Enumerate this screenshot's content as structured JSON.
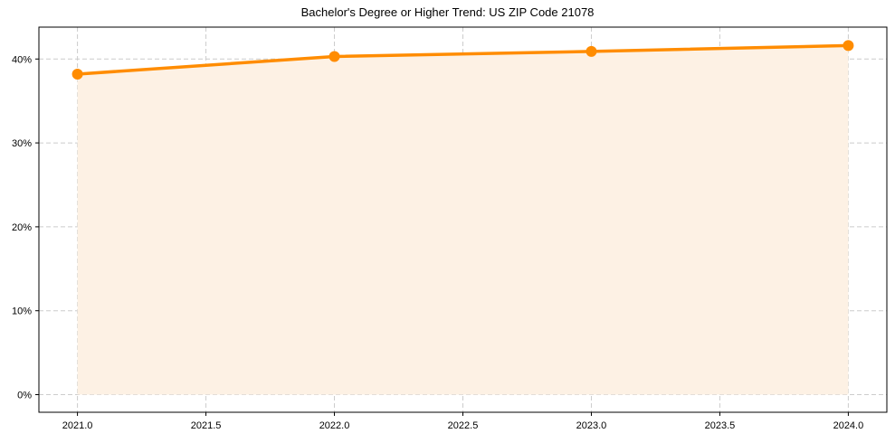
{
  "chart_data": {
    "type": "line",
    "title": "Bachelor's Degree or Higher Trend: US ZIP Code 21078",
    "xlabel": "",
    "ylabel": "",
    "x": [
      2021,
      2022,
      2023,
      2024
    ],
    "series": [
      {
        "name": "Bachelor's Degree or Higher",
        "values": [
          38.2,
          40.3,
          40.9,
          41.6
        ],
        "color": "#ff8c00",
        "fill": "#fdf1e4"
      }
    ],
    "xticks": [
      "2021.0",
      "2021.5",
      "2022.0",
      "2022.5",
      "2023.0",
      "2023.5",
      "2024.0"
    ],
    "yticks": [
      "0%",
      "10%",
      "20%",
      "30%",
      "40%"
    ],
    "xlim": [
      2020.85,
      2024.15
    ],
    "ylim": [
      -2.1,
      43.8
    ],
    "grid": true,
    "grid_style": "dashed",
    "legend": null,
    "area_fill": true
  }
}
